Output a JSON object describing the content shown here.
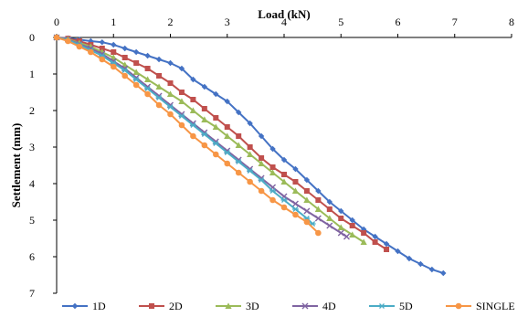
{
  "chart_data": {
    "type": "line",
    "xlabel": "Load (kN)",
    "ylabel": "Settlement (mm)",
    "xlim": [
      0,
      8
    ],
    "ylim": [
      0,
      7
    ],
    "x_axis_position": "top",
    "y_axis_inverted": true,
    "grid": false,
    "legend_position": "bottom",
    "xticks": [
      "0",
      "1",
      "2",
      "3",
      "4",
      "5",
      "6",
      "7",
      "8"
    ],
    "yticks": [
      "0",
      "1",
      "2",
      "3",
      "4",
      "5",
      "6",
      "7"
    ],
    "series": [
      {
        "name": "1D",
        "color": "#4472C4",
        "marker": "diamond",
        "points": [
          [
            0,
            0
          ],
          [
            0.2,
            0.02
          ],
          [
            0.4,
            0.06
          ],
          [
            0.6,
            0.1
          ],
          [
            0.8,
            0.13
          ],
          [
            1.0,
            0.2
          ],
          [
            1.2,
            0.3
          ],
          [
            1.4,
            0.4
          ],
          [
            1.6,
            0.5
          ],
          [
            1.8,
            0.6
          ],
          [
            2.0,
            0.7
          ],
          [
            2.2,
            0.85
          ],
          [
            2.4,
            1.15
          ],
          [
            2.6,
            1.35
          ],
          [
            2.8,
            1.55
          ],
          [
            3.0,
            1.75
          ],
          [
            3.2,
            2.05
          ],
          [
            3.4,
            2.35
          ],
          [
            3.6,
            2.7
          ],
          [
            3.8,
            3.05
          ],
          [
            4.0,
            3.35
          ],
          [
            4.2,
            3.6
          ],
          [
            4.4,
            3.9
          ],
          [
            4.6,
            4.2
          ],
          [
            4.8,
            4.5
          ],
          [
            5.0,
            4.75
          ],
          [
            5.2,
            5.0
          ],
          [
            5.4,
            5.25
          ],
          [
            5.6,
            5.45
          ],
          [
            5.8,
            5.65
          ],
          [
            6.0,
            5.85
          ],
          [
            6.2,
            6.05
          ],
          [
            6.4,
            6.2
          ],
          [
            6.6,
            6.35
          ],
          [
            6.8,
            6.45
          ]
        ]
      },
      {
        "name": "2D",
        "color": "#C0504D",
        "marker": "square",
        "points": [
          [
            0,
            0
          ],
          [
            0.2,
            0.03
          ],
          [
            0.4,
            0.1
          ],
          [
            0.6,
            0.2
          ],
          [
            0.8,
            0.3
          ],
          [
            1.0,
            0.4
          ],
          [
            1.2,
            0.55
          ],
          [
            1.4,
            0.7
          ],
          [
            1.6,
            0.85
          ],
          [
            1.8,
            1.05
          ],
          [
            2.0,
            1.25
          ],
          [
            2.2,
            1.5
          ],
          [
            2.4,
            1.7
          ],
          [
            2.6,
            1.95
          ],
          [
            2.8,
            2.2
          ],
          [
            3.0,
            2.45
          ],
          [
            3.2,
            2.7
          ],
          [
            3.4,
            3.0
          ],
          [
            3.6,
            3.3
          ],
          [
            3.8,
            3.55
          ],
          [
            4.0,
            3.75
          ],
          [
            4.2,
            3.95
          ],
          [
            4.4,
            4.2
          ],
          [
            4.6,
            4.45
          ],
          [
            4.8,
            4.7
          ],
          [
            5.0,
            4.95
          ],
          [
            5.2,
            5.15
          ],
          [
            5.4,
            5.35
          ],
          [
            5.6,
            5.6
          ],
          [
            5.8,
            5.8
          ]
        ]
      },
      {
        "name": "3D",
        "color": "#9BBB59",
        "marker": "triangle",
        "points": [
          [
            0,
            0
          ],
          [
            0.2,
            0.05
          ],
          [
            0.4,
            0.15
          ],
          [
            0.6,
            0.25
          ],
          [
            0.8,
            0.4
          ],
          [
            1.0,
            0.55
          ],
          [
            1.2,
            0.75
          ],
          [
            1.4,
            0.95
          ],
          [
            1.6,
            1.15
          ],
          [
            1.8,
            1.35
          ],
          [
            2.0,
            1.55
          ],
          [
            2.2,
            1.75
          ],
          [
            2.4,
            2.0
          ],
          [
            2.6,
            2.25
          ],
          [
            2.8,
            2.45
          ],
          [
            3.0,
            2.7
          ],
          [
            3.2,
            2.95
          ],
          [
            3.4,
            3.2
          ],
          [
            3.6,
            3.45
          ],
          [
            3.8,
            3.7
          ],
          [
            4.0,
            3.95
          ],
          [
            4.2,
            4.2
          ],
          [
            4.4,
            4.45
          ],
          [
            4.6,
            4.7
          ],
          [
            4.8,
            4.95
          ],
          [
            5.0,
            5.2
          ],
          [
            5.2,
            5.4
          ],
          [
            5.4,
            5.6
          ]
        ]
      },
      {
        "name": "4D",
        "color": "#8064A2",
        "marker": "x",
        "points": [
          [
            0,
            0
          ],
          [
            0.2,
            0.06
          ],
          [
            0.4,
            0.18
          ],
          [
            0.6,
            0.3
          ],
          [
            0.8,
            0.45
          ],
          [
            1.0,
            0.65
          ],
          [
            1.2,
            0.85
          ],
          [
            1.4,
            1.1
          ],
          [
            1.6,
            1.35
          ],
          [
            1.8,
            1.6
          ],
          [
            2.0,
            1.85
          ],
          [
            2.2,
            2.1
          ],
          [
            2.4,
            2.35
          ],
          [
            2.6,
            2.6
          ],
          [
            2.8,
            2.85
          ],
          [
            3.0,
            3.1
          ],
          [
            3.2,
            3.35
          ],
          [
            3.4,
            3.6
          ],
          [
            3.6,
            3.85
          ],
          [
            3.8,
            4.1
          ],
          [
            4.0,
            4.35
          ],
          [
            4.2,
            4.55
          ],
          [
            4.4,
            4.75
          ],
          [
            4.6,
            4.95
          ],
          [
            4.8,
            5.15
          ],
          [
            5.0,
            5.35
          ],
          [
            5.1,
            5.45
          ]
        ]
      },
      {
        "name": "5D",
        "color": "#4BACC6",
        "marker": "star",
        "points": [
          [
            0,
            0
          ],
          [
            0.2,
            0.07
          ],
          [
            0.4,
            0.2
          ],
          [
            0.6,
            0.35
          ],
          [
            0.8,
            0.5
          ],
          [
            1.0,
            0.7
          ],
          [
            1.2,
            0.9
          ],
          [
            1.4,
            1.15
          ],
          [
            1.6,
            1.4
          ],
          [
            1.8,
            1.65
          ],
          [
            2.0,
            1.9
          ],
          [
            2.2,
            2.15
          ],
          [
            2.4,
            2.4
          ],
          [
            2.6,
            2.65
          ],
          [
            2.8,
            2.9
          ],
          [
            3.0,
            3.15
          ],
          [
            3.2,
            3.4
          ],
          [
            3.4,
            3.65
          ],
          [
            3.6,
            3.9
          ],
          [
            3.8,
            4.2
          ],
          [
            4.0,
            4.45
          ],
          [
            4.2,
            4.7
          ],
          [
            4.4,
            4.95
          ],
          [
            4.5,
            5.1
          ]
        ]
      },
      {
        "name": "SINGLE",
        "color": "#F79646",
        "marker": "circle",
        "points": [
          [
            0,
            0
          ],
          [
            0.2,
            0.1
          ],
          [
            0.4,
            0.25
          ],
          [
            0.6,
            0.4
          ],
          [
            0.8,
            0.6
          ],
          [
            1.0,
            0.8
          ],
          [
            1.2,
            1.05
          ],
          [
            1.4,
            1.3
          ],
          [
            1.6,
            1.55
          ],
          [
            1.8,
            1.85
          ],
          [
            2.0,
            2.1
          ],
          [
            2.2,
            2.4
          ],
          [
            2.4,
            2.7
          ],
          [
            2.6,
            2.95
          ],
          [
            2.8,
            3.2
          ],
          [
            3.0,
            3.45
          ],
          [
            3.2,
            3.7
          ],
          [
            3.4,
            3.95
          ],
          [
            3.6,
            4.2
          ],
          [
            3.8,
            4.45
          ],
          [
            4.0,
            4.65
          ],
          [
            4.2,
            4.85
          ],
          [
            4.4,
            5.05
          ],
          [
            4.6,
            5.35
          ]
        ]
      }
    ]
  }
}
